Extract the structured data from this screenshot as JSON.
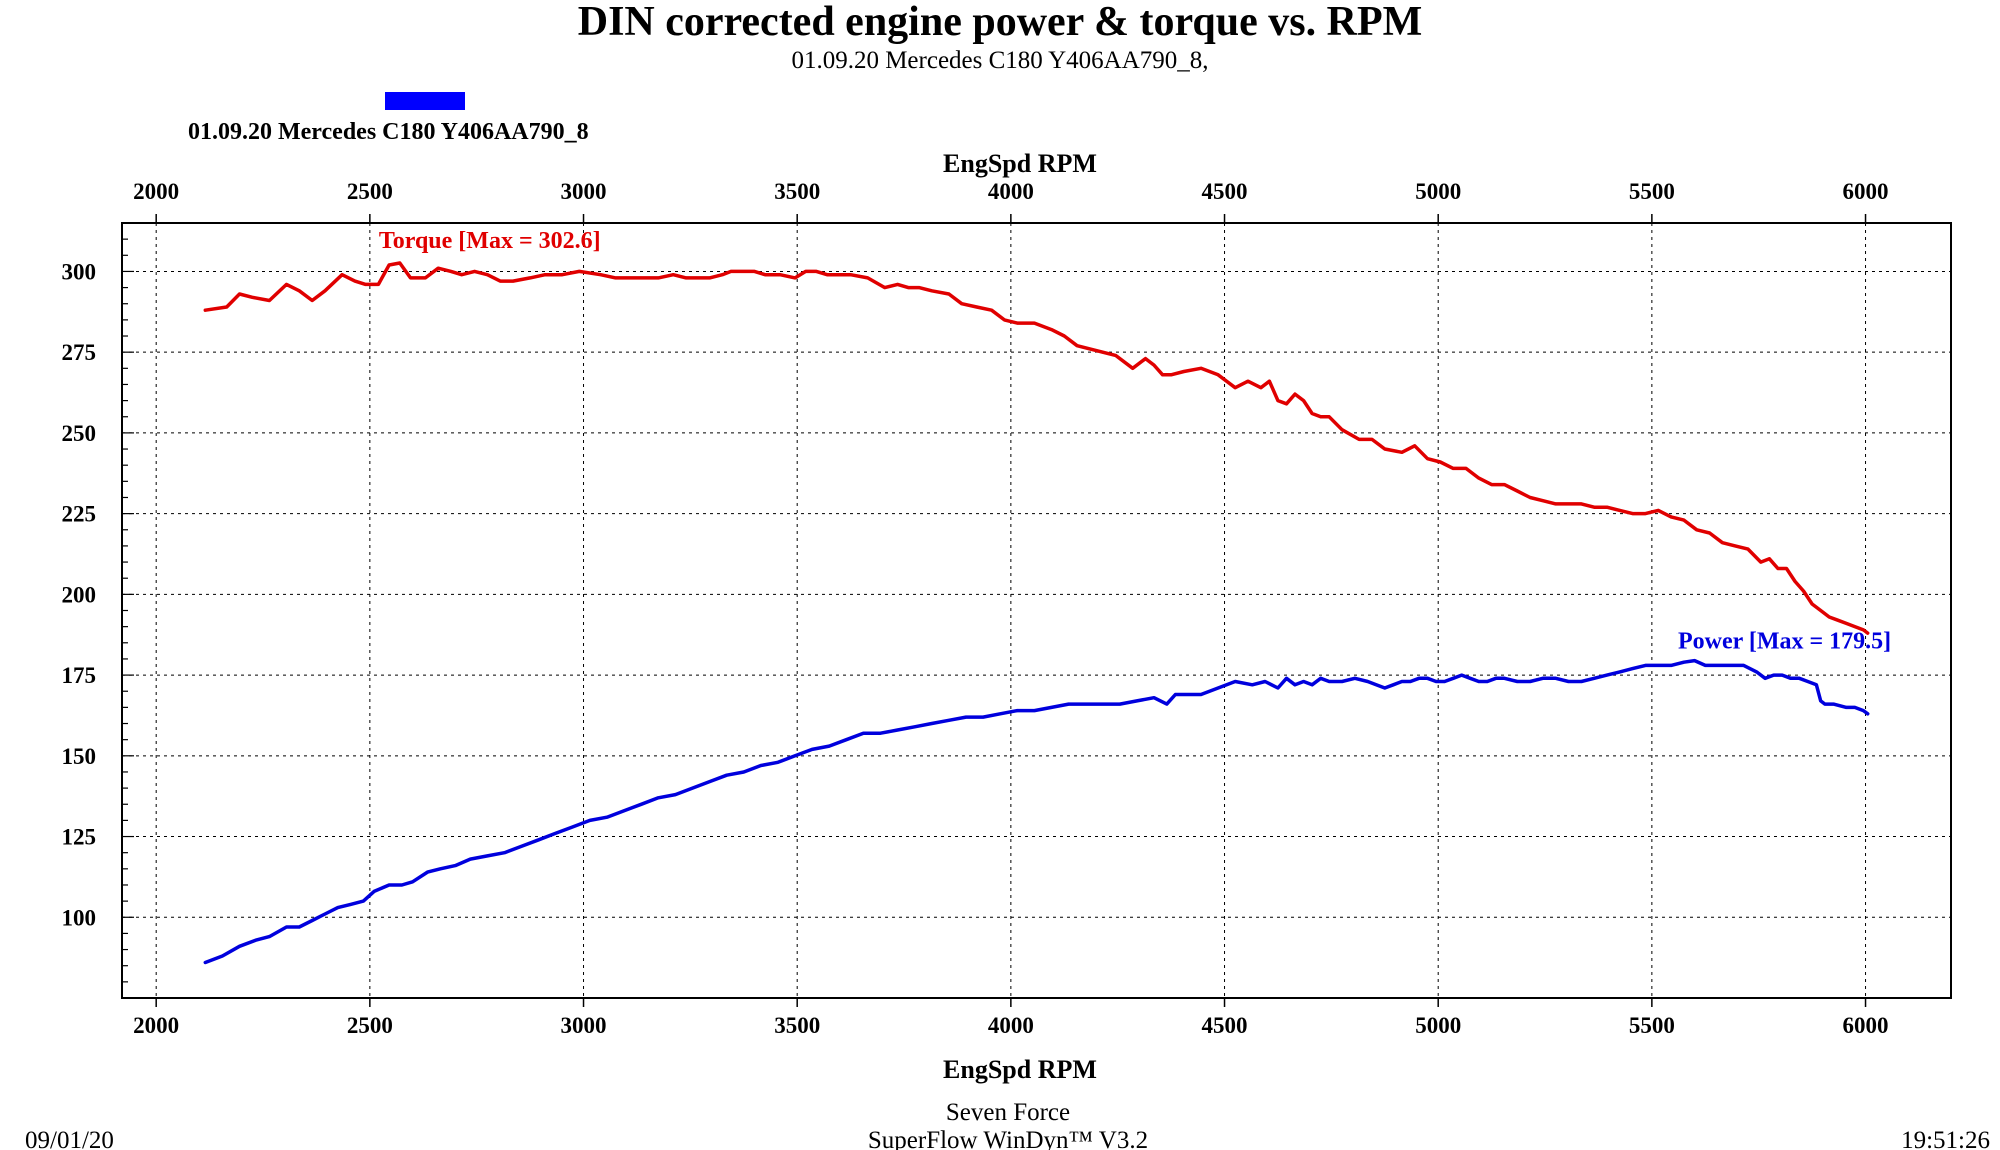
{
  "chart_data": {
    "type": "line",
    "title": "DIN corrected engine power & torque vs. RPM",
    "subtitle": "01.09.20 Mercedes C180  Y406AA790_8,",
    "legend": {
      "label": "01.09.20 Mercedes C180  Y406AA790_8",
      "color": "#0000ff",
      "position": "top-left"
    },
    "xlabel": "EngSpd RPM",
    "xlim": [
      1920,
      6200
    ],
    "ylim": [
      75,
      315
    ],
    "x_ticks": [
      "2000",
      "2500",
      "3000",
      "3500",
      "4000",
      "4500",
      "5000",
      "5500",
      "6000"
    ],
    "y_ticks": [
      "100",
      "125",
      "150",
      "175",
      "200",
      "225",
      "250",
      "275",
      "300"
    ],
    "grid": true,
    "series": [
      {
        "name": "Torque",
        "annotation": "Torque [Max = 302.6]",
        "color": "#e00000",
        "x": [
          2115,
          2165,
          2195,
          2225,
          2265,
          2305,
          2335,
          2365,
          2395,
          2435,
          2465,
          2490,
          2520,
          2545,
          2570,
          2595,
          2630,
          2660,
          2690,
          2715,
          2745,
          2775,
          2805,
          2835,
          2875,
          2910,
          2950,
          2990,
          3040,
          3075,
          3110,
          3140,
          3175,
          3210,
          3240,
          3265,
          3295,
          3325,
          3345,
          3375,
          3400,
          3425,
          3460,
          3495,
          3520,
          3545,
          3570,
          3595,
          3625,
          3665,
          3705,
          3735,
          3760,
          3785,
          3815,
          3855,
          3885,
          3920,
          3955,
          3985,
          4015,
          4055,
          4095,
          4125,
          4155,
          4185,
          4215,
          4245,
          4285,
          4315,
          4335,
          4355,
          4375,
          4405,
          4445,
          4485,
          4525,
          4555,
          4585,
          4605,
          4625,
          4645,
          4665,
          4685,
          4705,
          4725,
          4745,
          4775,
          4815,
          4845,
          4875,
          4915,
          4945,
          4975,
          5005,
          5035,
          5065,
          5095,
          5125,
          5155,
          5185,
          5215,
          5245,
          5275,
          5305,
          5335,
          5365,
          5395,
          5425,
          5455,
          5485,
          5515,
          5545,
          5575,
          5605,
          5635,
          5665,
          5695,
          5725,
          5755,
          5775,
          5795,
          5815,
          5835,
          5855,
          5875,
          5895,
          5915,
          5935,
          5955,
          5975,
          5995,
          6005
        ],
        "values": [
          288,
          289,
          293,
          292,
          291,
          296,
          294,
          291,
          294,
          299,
          297,
          296,
          296,
          302,
          302.6,
          298,
          298,
          301,
          300,
          299,
          300,
          299,
          297,
          297,
          298,
          299,
          299,
          300,
          299,
          298,
          298,
          298,
          298,
          299,
          298,
          298,
          298,
          299,
          300,
          300,
          300,
          299,
          299,
          298,
          300,
          300,
          299,
          299,
          299,
          298,
          295,
          296,
          295,
          295,
          294,
          293,
          290,
          289,
          288,
          285,
          284,
          284,
          282,
          280,
          277,
          276,
          275,
          274,
          270,
          273,
          271,
          268,
          268,
          269,
          270,
          268,
          264,
          266,
          264,
          266,
          260,
          259,
          262,
          260,
          256,
          255,
          255,
          251,
          248,
          248,
          245,
          244,
          246,
          242,
          241,
          239,
          239,
          236,
          234,
          234,
          232,
          230,
          229,
          228,
          228,
          228,
          227,
          227,
          226,
          225,
          225,
          226,
          224,
          223,
          220,
          219,
          216,
          215,
          214,
          210,
          211,
          208,
          208,
          204,
          201,
          197,
          195,
          193,
          192,
          191,
          190,
          189,
          188
        ]
      },
      {
        "name": "Power",
        "annotation": "Power  [Max = 179.5]",
        "color": "#0000dd",
        "x": [
          2115,
          2155,
          2195,
          2235,
          2265,
          2305,
          2335,
          2365,
          2395,
          2425,
          2455,
          2485,
          2510,
          2545,
          2575,
          2600,
          2635,
          2665,
          2700,
          2735,
          2775,
          2815,
          2855,
          2895,
          2935,
          2975,
          3015,
          3055,
          3095,
          3135,
          3175,
          3215,
          3255,
          3295,
          3335,
          3375,
          3415,
          3455,
          3495,
          3535,
          3575,
          3615,
          3655,
          3695,
          3735,
          3775,
          3815,
          3855,
          3895,
          3935,
          3975,
          4015,
          4055,
          4095,
          4135,
          4175,
          4215,
          4255,
          4295,
          4335,
          4365,
          4385,
          4405,
          4425,
          4445,
          4485,
          4525,
          4565,
          4595,
          4625,
          4645,
          4665,
          4685,
          4705,
          4725,
          4745,
          4775,
          4805,
          4835,
          4855,
          4875,
          4895,
          4915,
          4935,
          4955,
          4975,
          4995,
          5015,
          5035,
          5055,
          5075,
          5095,
          5115,
          5135,
          5155,
          5185,
          5215,
          5245,
          5275,
          5305,
          5335,
          5365,
          5395,
          5425,
          5455,
          5485,
          5515,
          5545,
          5575,
          5600,
          5625,
          5655,
          5685,
          5715,
          5745,
          5765,
          5785,
          5805,
          5825,
          5845,
          5865,
          5885,
          5895,
          5905,
          5925,
          5955,
          5975,
          5995,
          6005
        ],
        "values": [
          86,
          88,
          91,
          93,
          94,
          97,
          97,
          99,
          101,
          103,
          104,
          105,
          108,
          110,
          110,
          111,
          114,
          115,
          116,
          118,
          119,
          120,
          122,
          124,
          126,
          128,
          130,
          131,
          133,
          135,
          137,
          138,
          140,
          142,
          144,
          145,
          147,
          148,
          150,
          152,
          153,
          155,
          157,
          157,
          158,
          159,
          160,
          161,
          162,
          162,
          163,
          164,
          164,
          165,
          166,
          166,
          166,
          166,
          167,
          168,
          166,
          169,
          169,
          169,
          169,
          171,
          173,
          172,
          173,
          171,
          174,
          172,
          173,
          172,
          174,
          173,
          173,
          174,
          173,
          172,
          171,
          172,
          173,
          173,
          174,
          174,
          173,
          173,
          174,
          175,
          174,
          173,
          173,
          174,
          174,
          173,
          173,
          174,
          174,
          173,
          173,
          174,
          175,
          176,
          177,
          178,
          178,
          178,
          179,
          179.5,
          178,
          178,
          178,
          178,
          176,
          174,
          175,
          175,
          174,
          174,
          173,
          172,
          167,
          166,
          166,
          165,
          165,
          164,
          163
        ]
      }
    ]
  },
  "footer": {
    "left": "09/01/20",
    "center_line1": "Seven Force",
    "center_line2": "SuperFlow WinDyn™ V3.2",
    "right": "19:51:26"
  }
}
